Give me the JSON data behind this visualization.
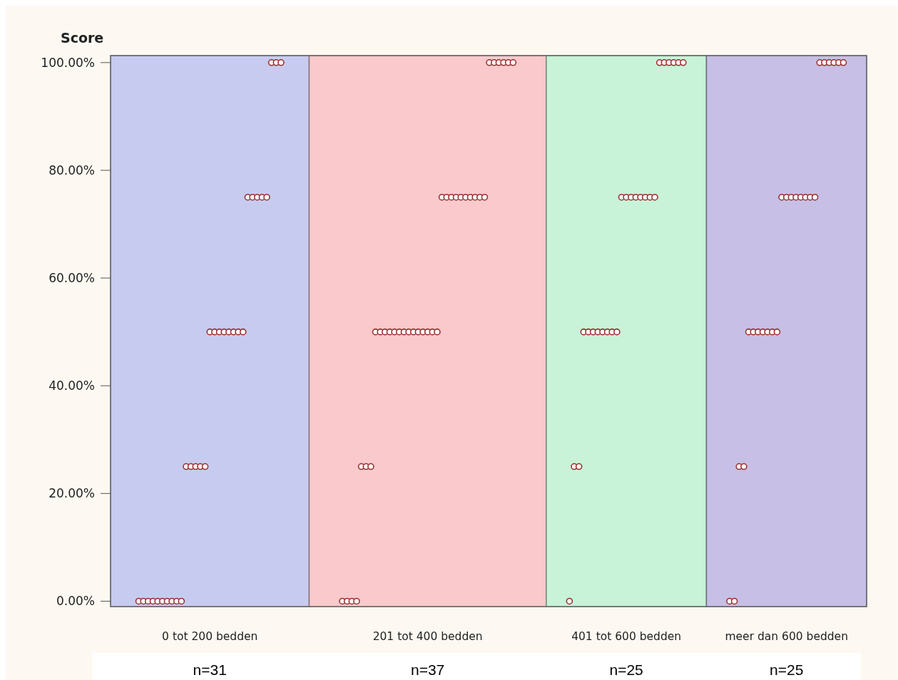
{
  "chart_data": {
    "type": "scatter",
    "ylabel": "Score",
    "categories": [
      "0 tot 200 bedden",
      "201 tot 400 bedden",
      "401 tot 600 bedden",
      "meer dan 600 bedden"
    ],
    "series": [
      {
        "color": "#9b2d2d",
        "x": [
          "0 tot 200 bedden",
          "0 tot 200 bedden",
          "0 tot 200 bedden",
          "0 tot 200 bedden",
          "0 tot 200 bedden",
          "0 tot 200 bedden",
          "0 tot 200 bedden",
          "0 tot 200 bedden",
          "0 tot 200 bedden",
          "0 tot 200 bedden",
          "0 tot 200 bedden",
          "0 tot 200 bedden",
          "0 tot 200 bedden",
          "0 tot 200 bedden",
          "0 tot 200 bedden",
          "0 tot 200 bedden",
          "0 tot 200 bedden",
          "0 tot 200 bedden",
          "0 tot 200 bedden",
          "0 tot 200 bedden",
          "0 tot 200 bedden",
          "0 tot 200 bedden",
          "0 tot 200 bedden",
          "0 tot 200 bedden",
          "0 tot 200 bedden",
          "0 tot 200 bedden",
          "0 tot 200 bedden",
          "0 tot 200 bedden",
          "0 tot 200 bedden",
          "0 tot 200 bedden",
          "0 tot 200 bedden"
        ],
        "values": [
          0,
          0,
          0,
          0,
          0,
          0,
          0,
          0,
          0,
          0,
          25,
          25,
          25,
          25,
          25,
          50,
          50,
          50,
          50,
          50,
          50,
          50,
          50,
          75,
          75,
          75,
          75,
          75,
          100,
          100,
          100
        ]
      },
      {
        "color": "#9b2d2d",
        "x": [
          "201 tot 400 bedden",
          "201 tot 400 bedden",
          "201 tot 400 bedden",
          "201 tot 400 bedden",
          "201 tot 400 bedden",
          "201 tot 400 bedden",
          "201 tot 400 bedden",
          "201 tot 400 bedden",
          "201 tot 400 bedden",
          "201 tot 400 bedden",
          "201 tot 400 bedden",
          "201 tot 400 bedden",
          "201 tot 400 bedden",
          "201 tot 400 bedden",
          "201 tot 400 bedden",
          "201 tot 400 bedden",
          "201 tot 400 bedden",
          "201 tot 400 bedden",
          "201 tot 400 bedden",
          "201 tot 400 bedden",
          "201 tot 400 bedden",
          "201 tot 400 bedden",
          "201 tot 400 bedden",
          "201 tot 400 bedden",
          "201 tot 400 bedden",
          "201 tot 400 bedden",
          "201 tot 400 bedden",
          "201 tot 400 bedden",
          "201 tot 400 bedden",
          "201 tot 400 bedden",
          "201 tot 400 bedden",
          "201 tot 400 bedden",
          "201 tot 400 bedden",
          "201 tot 400 bedden",
          "201 tot 400 bedden",
          "201 tot 400 bedden",
          "201 tot 400 bedden"
        ],
        "values": [
          0,
          0,
          0,
          0,
          25,
          25,
          25,
          50,
          50,
          50,
          50,
          50,
          50,
          50,
          50,
          50,
          50,
          50,
          50,
          50,
          50,
          75,
          75,
          75,
          75,
          75,
          75,
          75,
          75,
          75,
          75,
          100,
          100,
          100,
          100,
          100,
          100
        ]
      },
      {
        "color": "#9b2d2d",
        "x": [
          "401 tot 600 bedden",
          "401 tot 600 bedden",
          "401 tot 600 bedden",
          "401 tot 600 bedden",
          "401 tot 600 bedden",
          "401 tot 600 bedden",
          "401 tot 600 bedden",
          "401 tot 600 bedden",
          "401 tot 600 bedden",
          "401 tot 600 bedden",
          "401 tot 600 bedden",
          "401 tot 600 bedden",
          "401 tot 600 bedden",
          "401 tot 600 bedden",
          "401 tot 600 bedden",
          "401 tot 600 bedden",
          "401 tot 600 bedden",
          "401 tot 600 bedden",
          "401 tot 600 bedden",
          "401 tot 600 bedden",
          "401 tot 600 bedden",
          "401 tot 600 bedden",
          "401 tot 600 bedden",
          "401 tot 600 bedden",
          "401 tot 600 bedden"
        ],
        "values": [
          0,
          25,
          25,
          50,
          50,
          50,
          50,
          50,
          50,
          50,
          50,
          75,
          75,
          75,
          75,
          75,
          75,
          75,
          75,
          100,
          100,
          100,
          100,
          100,
          100
        ]
      },
      {
        "color": "#9b2d2d",
        "x": [
          "meer dan 600 bedden",
          "meer dan 600 bedden",
          "meer dan 600 bedden",
          "meer dan 600 bedden",
          "meer dan 600 bedden",
          "meer dan 600 bedden",
          "meer dan 600 bedden",
          "meer dan 600 bedden",
          "meer dan 600 bedden",
          "meer dan 600 bedden",
          "meer dan 600 bedden",
          "meer dan 600 bedden",
          "meer dan 600 bedden",
          "meer dan 600 bedden",
          "meer dan 600 bedden",
          "meer dan 600 bedden",
          "meer dan 600 bedden",
          "meer dan 600 bedden",
          "meer dan 600 bedden",
          "meer dan 600 bedden",
          "meer dan 600 bedden",
          "meer dan 600 bedden",
          "meer dan 600 bedden",
          "meer dan 600 bedden",
          "meer dan 600 bedden"
        ],
        "values": [
          0,
          0,
          25,
          25,
          50,
          50,
          50,
          50,
          50,
          50,
          50,
          75,
          75,
          75,
          75,
          75,
          75,
          75,
          75,
          100,
          100,
          100,
          100,
          100,
          100
        ]
      }
    ],
    "bands": [
      {
        "axis": "x",
        "from": "0 tot 200 bedden",
        "to": "0 tot 200 bedden",
        "color": "#c8cbf0"
      },
      {
        "axis": "x",
        "from": "201 tot 400 bedden",
        "to": "201 tot 400 bedden",
        "color": "#f9c9cc"
      },
      {
        "axis": "x",
        "from": "401 tot 600 bedden",
        "to": "401 tot 600 bedden",
        "color": "#c8f3d8"
      },
      {
        "axis": "x",
        "from": "meer dan 600 bedden",
        "to": "meer dan 600 bedden",
        "color": "#c7bfe5"
      }
    ],
    "ylim": [
      -1,
      101.3
    ],
    "yticks": [
      {
        "value": 0,
        "label": "0.00%"
      },
      {
        "value": 20,
        "label": "20.00%"
      },
      {
        "value": 40,
        "label": "40.00%"
      },
      {
        "value": 60,
        "label": "60.00%"
      },
      {
        "value": 80,
        "label": "80.00%"
      },
      {
        "value": 100,
        "label": "100.00%"
      }
    ],
    "marker": "circle",
    "grid": false,
    "annotations": [
      "n=31",
      "n=37",
      "n=25",
      "n=25"
    ]
  }
}
